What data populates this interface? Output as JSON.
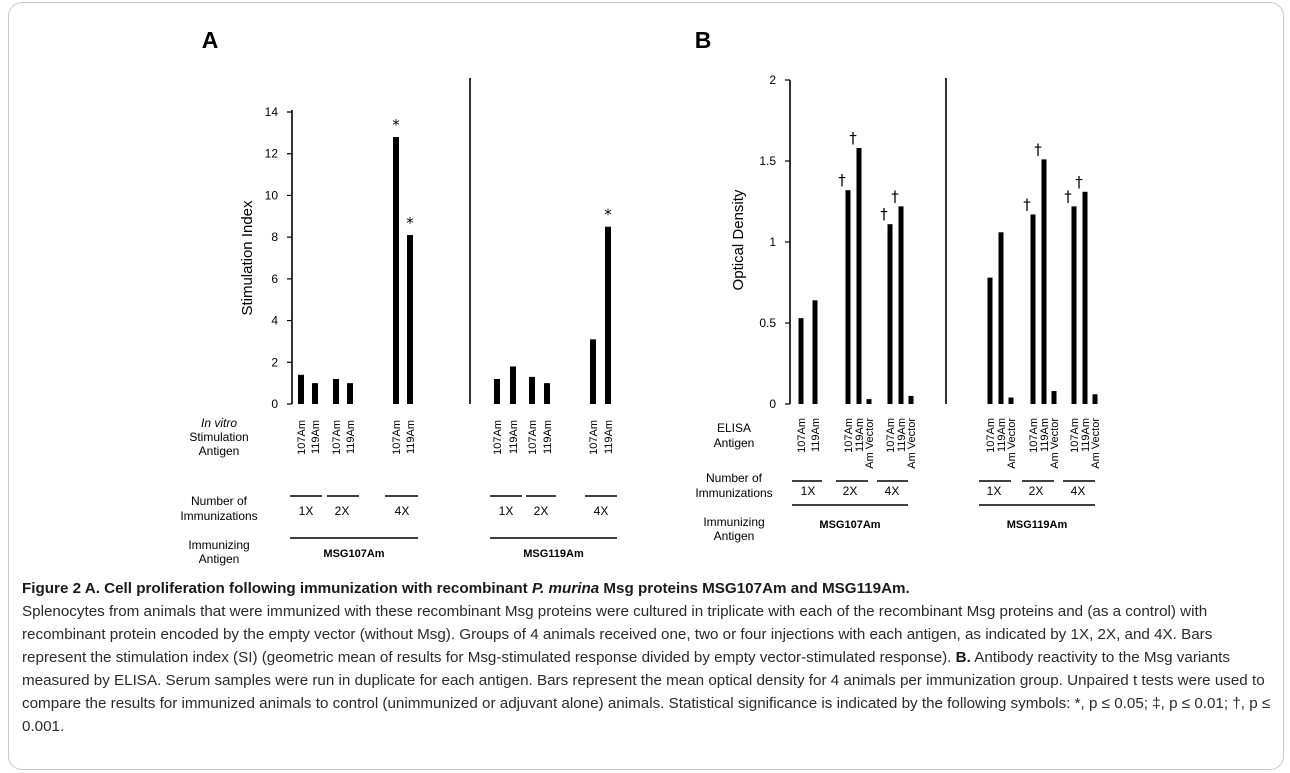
{
  "chart_data": [
    {
      "type": "bar",
      "panel": "A",
      "ylabel": "Stimulation Index",
      "ylim": [
        0,
        14
      ],
      "yticks": [
        0,
        2,
        4,
        6,
        8,
        10,
        12,
        14
      ],
      "row_labels": {
        "stim_antigen": [
          "In vitro",
          "Stimulation",
          "Antigen"
        ],
        "number": [
          "Number of",
          "Immunizations"
        ],
        "immunizing": [
          "Immunizing",
          "Antigen"
        ]
      },
      "groups": [
        {
          "immunizing": "MSG107Am",
          "immunizations": "1X",
          "bars": [
            {
              "label": "107Am",
              "value": 1.4
            },
            {
              "label": "119Am",
              "value": 1.0
            }
          ]
        },
        {
          "immunizing": "MSG107Am",
          "immunizations": "2X",
          "bars": [
            {
              "label": "107Am",
              "value": 1.2
            },
            {
              "label": "119Am",
              "value": 1.0
            }
          ]
        },
        {
          "immunizing": "MSG107Am",
          "immunizations": "4X",
          "bars": [
            {
              "label": "107Am",
              "value": 12.8,
              "sig": "*"
            },
            {
              "label": "119Am",
              "value": 8.1,
              "sig": "*"
            }
          ]
        },
        {
          "immunizing": "MSG119Am",
          "immunizations": "1X",
          "bars": [
            {
              "label": "107Am",
              "value": 1.2
            },
            {
              "label": "119Am",
              "value": 1.8
            }
          ]
        },
        {
          "immunizing": "MSG119Am",
          "immunizations": "2X",
          "bars": [
            {
              "label": "107Am",
              "value": 1.3
            },
            {
              "label": "119Am",
              "value": 1.0
            }
          ]
        },
        {
          "immunizing": "MSG119Am",
          "immunizations": "4X",
          "bars": [
            {
              "label": "107Am",
              "value": 3.1
            },
            {
              "label": "119Am",
              "value": 8.5,
              "sig": "*"
            }
          ]
        }
      ]
    },
    {
      "type": "bar",
      "panel": "B",
      "ylabel": "Optical Density",
      "ylim": [
        0,
        2
      ],
      "yticks": [
        "0",
        "0.5",
        "1",
        "1.5",
        "2"
      ],
      "row_labels": {
        "elisa_antigen": [
          "ELISA",
          "Antigen"
        ],
        "number": [
          "Number of",
          "Immunizations"
        ],
        "immunizing": [
          "Immunizing",
          "Antigen"
        ]
      },
      "groups": [
        {
          "immunizing": "MSG107Am",
          "immunizations": "1X",
          "bars": [
            {
              "label": "107Am",
              "value": 0.53
            },
            {
              "label": "119Am",
              "value": 0.64
            }
          ]
        },
        {
          "immunizing": "MSG107Am",
          "immunizations": "2X",
          "bars": [
            {
              "label": "107Am",
              "value": 1.32,
              "sig": "†"
            },
            {
              "label": "119Am",
              "value": 1.58,
              "sig": "†"
            },
            {
              "label": "Am Vector",
              "value": 0.03
            }
          ]
        },
        {
          "immunizing": "MSG107Am",
          "immunizations": "4X",
          "bars": [
            {
              "label": "107Am",
              "value": 1.11,
              "sig": "†"
            },
            {
              "label": "119Am",
              "value": 1.22,
              "sig": "†"
            },
            {
              "label": "Am Vector",
              "value": 0.05
            }
          ]
        },
        {
          "immunizing": "MSG119Am",
          "immunizations": "1X",
          "bars": [
            {
              "label": "107Am",
              "value": 0.78
            },
            {
              "label": "119Am",
              "value": 1.06
            },
            {
              "label": "Am Vector",
              "value": 0.04
            }
          ]
        },
        {
          "immunizing": "MSG119Am",
          "immunizations": "2X",
          "bars": [
            {
              "label": "107Am",
              "value": 1.17,
              "sig": "†"
            },
            {
              "label": "119Am",
              "value": 1.51,
              "sig": "†"
            },
            {
              "label": "Am Vector",
              "value": 0.08
            }
          ]
        },
        {
          "immunizing": "MSG119Am",
          "immunizations": "4X",
          "bars": [
            {
              "label": "107Am",
              "value": 1.22,
              "sig": "†"
            },
            {
              "label": "119Am",
              "value": 1.31,
              "sig": "†"
            },
            {
              "label": "Am Vector",
              "value": 0.06
            }
          ]
        }
      ]
    }
  ],
  "caption": {
    "title_prefix": "Figure 2 A. Cell proliferation following immunization with recombinant ",
    "title_italic": "P. murina",
    "title_suffix": " Msg proteins MSG107Am and MSG119Am.",
    "para_a": "Splenocytes from animals that were immunized with these recombinant Msg proteins were cultured in triplicate with each of the recombinant Msg proteins and (as a control) with recombinant protein encoded by the empty vector (without Msg). Groups of 4 animals received one, two or four injections with each antigen, as indicated by 1X, 2X, and 4X. Bars represent the stimulation index (SI) (geometric mean of results for Msg-stimulated response divided by empty vector-stimulated response).",
    "b_label": "B.",
    "para_b": "Antibody reactivity to the Msg variants measured by ELISA. Serum samples were run in duplicate for each antigen. Bars represent the mean optical density for 4 animals per immunization group. Unpaired t tests were used to compare the results for immunized animals to control (unimmunized or adjuvant alone) animals. Statistical significance is indicated by the following symbols: *, p ≤ 0.05; ‡, p ≤ 0.01; †, p ≤ 0.001."
  }
}
